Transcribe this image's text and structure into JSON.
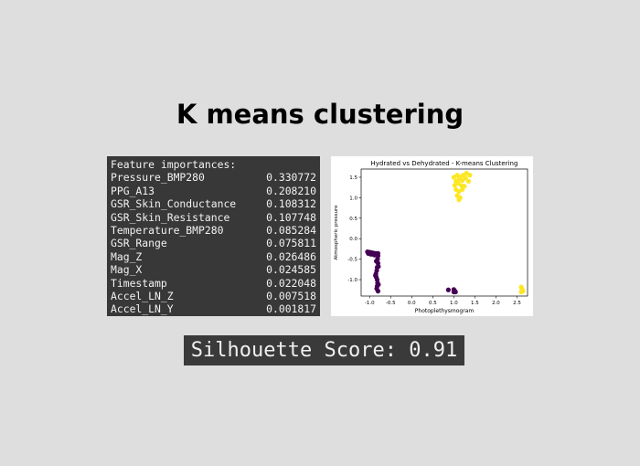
{
  "title": "K means clustering",
  "features": {
    "header": "Feature importances:",
    "rows": [
      {
        "name": "Pressure_BMP280",
        "value": "0.330772"
      },
      {
        "name": "PPG_A13",
        "value": "0.208210"
      },
      {
        "name": "GSR_Skin_Conductance",
        "value": "0.108312"
      },
      {
        "name": "GSR_Skin_Resistance",
        "value": "0.107748"
      },
      {
        "name": "Temperature_BMP280",
        "value": "0.085284"
      },
      {
        "name": "GSR_Range",
        "value": "0.075811"
      },
      {
        "name": "Mag_Z",
        "value": "0.026486"
      },
      {
        "name": "Mag_X",
        "value": "0.024585"
      },
      {
        "name": "Timestamp",
        "value": "0.022048"
      },
      {
        "name": "Accel_LN_Z",
        "value": "0.007518"
      },
      {
        "name": "Accel_LN_Y",
        "value": "0.001817"
      }
    ]
  },
  "chart_data": {
    "type": "scatter",
    "title": "Hydrated vs Dehydrated - K-means Clustering",
    "xlabel": "Photoplethysmogram",
    "ylabel": "Atmospheric pressure",
    "xlim": [
      -1.2,
      2.75
    ],
    "ylim": [
      -1.4,
      1.7
    ],
    "xticks": [
      "-1.0",
      "-0.5",
      "0.0",
      "0.5",
      "1.0",
      "1.5",
      "2.0",
      "2.5"
    ],
    "yticks": [
      "-1.0",
      "-0.5",
      "0.0",
      "0.5",
      "1.0",
      "1.5"
    ],
    "colors": {
      "cluster0": "#440154",
      "cluster1": "#fde725"
    },
    "clusters": [
      {
        "color": "#440154",
        "points": [
          [
            -1.05,
            -0.32
          ],
          [
            -1.0,
            -0.33
          ],
          [
            -0.95,
            -0.34
          ],
          [
            -0.9,
            -0.35
          ],
          [
            -0.85,
            -0.36
          ],
          [
            -0.8,
            -0.36
          ],
          [
            -1.03,
            -0.36
          ],
          [
            -0.97,
            -0.38
          ],
          [
            -0.92,
            -0.38
          ],
          [
            -0.88,
            -0.4
          ],
          [
            -0.8,
            -0.42
          ],
          [
            -0.81,
            -0.5
          ],
          [
            -0.8,
            -0.6
          ],
          [
            -0.82,
            -0.7
          ],
          [
            -0.83,
            -0.78
          ],
          [
            -0.85,
            -0.86
          ],
          [
            -0.84,
            -0.94
          ],
          [
            -0.82,
            -1.0
          ],
          [
            -0.81,
            -1.08
          ],
          [
            -0.82,
            -1.16
          ],
          [
            -0.83,
            -1.22
          ],
          [
            -0.8,
            -1.28
          ],
          [
            -0.84,
            -0.55
          ],
          [
            -0.79,
            -0.68
          ],
          [
            -0.86,
            -0.9
          ],
          [
            -0.79,
            -1.12
          ],
          [
            0.87,
            -1.25
          ],
          [
            1.0,
            -1.24
          ],
          [
            1.02,
            -1.27
          ],
          [
            1.04,
            -1.3
          ],
          [
            1.0,
            -1.3
          ]
        ]
      },
      {
        "color": "#fde725",
        "points": [
          [
            1.0,
            1.5
          ],
          [
            1.08,
            1.55
          ],
          [
            1.15,
            1.5
          ],
          [
            1.22,
            1.55
          ],
          [
            1.3,
            1.6
          ],
          [
            1.38,
            1.55
          ],
          [
            1.05,
            1.4
          ],
          [
            1.12,
            1.45
          ],
          [
            1.2,
            1.42
          ],
          [
            1.28,
            1.48
          ],
          [
            1.35,
            1.4
          ],
          [
            1.02,
            1.3
          ],
          [
            1.1,
            1.35
          ],
          [
            1.18,
            1.3
          ],
          [
            1.25,
            1.28
          ],
          [
            1.05,
            1.2
          ],
          [
            1.12,
            1.15
          ],
          [
            1.2,
            1.2
          ],
          [
            1.08,
            1.05
          ],
          [
            1.15,
            1.0
          ],
          [
            1.12,
            0.95
          ],
          [
            2.6,
            -1.18
          ],
          [
            2.62,
            -1.23
          ],
          [
            2.64,
            -1.28
          ],
          [
            2.6,
            -1.3
          ]
        ]
      }
    ],
    "legend": "none",
    "grid": false
  },
  "silhouette": "Silhouette Score: 0.91"
}
